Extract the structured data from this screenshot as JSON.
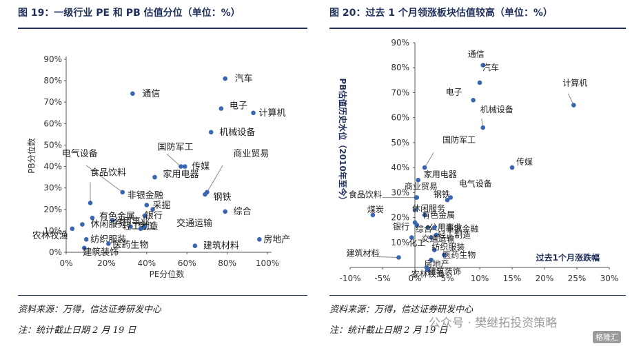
{
  "left": {
    "title": "图 19：一级行业 PE 和 PB 估值分位（单位：%）",
    "source": "资料来源：万得，信达证券研发中心",
    "note": "注：统计截止日期 2 月 19 日"
  },
  "right": {
    "title": "图 20：过去 1 个月领涨板块估值较高（单位：%）",
    "source": "资料来源：万得，信达证券研发中心",
    "note": "注：统计截止日期 2 月 19 日"
  },
  "watermark": "公众号 · 樊继拓投资策略",
  "logo": "格隆汇",
  "colors": {
    "point": "#3a66b0",
    "text": "#1f2f5a",
    "axis": "#555555",
    "leader": "#888888"
  },
  "chart_data": [
    {
      "type": "scatter",
      "title": "",
      "xlabel": "PE分位数",
      "ylabel": "PB分位数",
      "xlim": [
        0,
        100
      ],
      "ylim": [
        0,
        90
      ],
      "xticks": [
        0,
        20,
        40,
        60,
        80,
        100
      ],
      "yticks": [
        0,
        10,
        20,
        30,
        40,
        50,
        60,
        70,
        80,
        90
      ],
      "tick_format": "percent",
      "grid": false,
      "points": [
        {
          "name": "汽车",
          "x": 79,
          "y": 81
        },
        {
          "name": "通信",
          "x": 33,
          "y": 74
        },
        {
          "name": "电子",
          "x": 77,
          "y": 67
        },
        {
          "name": "计算机",
          "x": 93,
          "y": 65
        },
        {
          "name": "机械设备",
          "x": 72,
          "y": 56
        },
        {
          "name": "国防军工",
          "x": 57,
          "y": 40
        },
        {
          "name": "传媒",
          "x": 59,
          "y": 40
        },
        {
          "name": "电气设备",
          "x": 28,
          "y": 28
        },
        {
          "name": "家用电器",
          "x": 44,
          "y": 35
        },
        {
          "name": "商业贸易",
          "x": 70,
          "y": 28
        },
        {
          "name": "钢铁",
          "x": 69,
          "y": 27
        },
        {
          "name": "食品饮料",
          "x": 12,
          "y": 23
        },
        {
          "name": "非银金融",
          "x": 40,
          "y": 22
        },
        {
          "name": "采掘",
          "x": 43,
          "y": 20
        },
        {
          "name": "综合",
          "x": 79,
          "y": 19
        },
        {
          "name": "银行",
          "x": 39,
          "y": 17
        },
        {
          "name": "有色金属",
          "x": 13,
          "y": 16
        },
        {
          "name": "公用事业",
          "x": 23,
          "y": 15
        },
        {
          "name": "轻工制造",
          "x": 32,
          "y": 12
        },
        {
          "name": "化工",
          "x": 39,
          "y": 12
        },
        {
          "name": "交通运输",
          "x": 37,
          "y": 11
        },
        {
          "name": "休闲服务",
          "x": 8,
          "y": 13
        },
        {
          "name": "农林牧渔",
          "x": 3,
          "y": 11
        },
        {
          "name": "纺织服装",
          "x": 10,
          "y": 6
        },
        {
          "name": "医药生物",
          "x": 21,
          "y": 4
        },
        {
          "name": "建筑装饰",
          "x": 9,
          "y": 2
        },
        {
          "name": "建筑材料",
          "x": 64,
          "y": 3
        },
        {
          "name": "房地产",
          "x": 96,
          "y": 6
        }
      ]
    },
    {
      "type": "scatter",
      "title": "",
      "xlabel": "过去1个月涨跌幅",
      "ylabel": "PB估值历史水位（2010年至今）",
      "xlim": [
        -10,
        30
      ],
      "ylim": [
        0,
        90
      ],
      "xticks": [
        -10,
        -5,
        0,
        5,
        10,
        15,
        20,
        25,
        30
      ],
      "yticks": [
        10,
        20,
        30,
        40,
        50,
        60,
        70,
        80,
        90
      ],
      "tick_format": "percent",
      "grid": false,
      "points": [
        {
          "name": "通信",
          "x": 10.5,
          "y": 81
        },
        {
          "name": "汽车",
          "x": 10,
          "y": 74
        },
        {
          "name": "电子",
          "x": 9,
          "y": 67
        },
        {
          "name": "计算机",
          "x": 24.5,
          "y": 65
        },
        {
          "name": "机械设备",
          "x": 10.5,
          "y": 56
        },
        {
          "name": "传媒",
          "x": 15,
          "y": 40
        },
        {
          "name": "国防军工",
          "x": 1.5,
          "y": 40
        },
        {
          "name": "家用电器",
          "x": 0.5,
          "y": 35
        },
        {
          "name": "商业贸易",
          "x": 0.3,
          "y": 28
        },
        {
          "name": "钢铁",
          "x": 5,
          "y": 27
        },
        {
          "name": "电气设备",
          "x": 5.5,
          "y": 28
        },
        {
          "name": "食品饮料",
          "x": 0.2,
          "y": 28
        },
        {
          "name": "休闲服务",
          "x": 0,
          "y": 23
        },
        {
          "name": "煤炭",
          "x": -6.5,
          "y": 21
        },
        {
          "name": "有色金属",
          "x": 1.5,
          "y": 21
        },
        {
          "name": "公用事业",
          "x": 2,
          "y": 16
        },
        {
          "name": "非银金融",
          "x": 3,
          "y": 16
        },
        {
          "name": "银行",
          "x": 0,
          "y": 18
        },
        {
          "name": "综合",
          "x": 0.3,
          "y": 17
        },
        {
          "name": "轻工制造",
          "x": 3.3,
          "y": 13
        },
        {
          "name": "交通运输",
          "x": 2.5,
          "y": 12
        },
        {
          "name": "化工",
          "x": -0.5,
          "y": 12
        },
        {
          "name": "纺织服装",
          "x": 3,
          "y": 7
        },
        {
          "name": "医药生物",
          "x": 4.5,
          "y": 5
        },
        {
          "name": "建筑材料",
          "x": -2.5,
          "y": 4
        },
        {
          "name": "房地产",
          "x": 2.5,
          "y": 3
        },
        {
          "name": "建筑装饰",
          "x": 1.8,
          "y": 0
        },
        {
          "name": "农林牧渔",
          "x": 2,
          "y": -1
        }
      ]
    }
  ]
}
